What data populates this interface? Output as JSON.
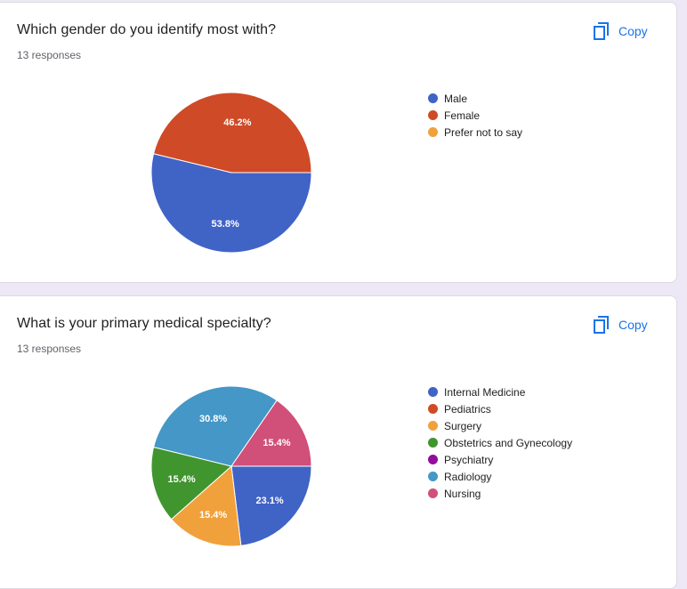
{
  "questions": [
    {
      "title": "Which gender do you identify most with?",
      "responses": "13 responses",
      "copy_label": "Copy",
      "copy_icon": "copy-icon",
      "legend": [
        {
          "label": "Male",
          "color": "#4063c6"
        },
        {
          "label": "Female",
          "color": "#cf4a27"
        },
        {
          "label": "Prefer not to say",
          "color": "#f1a13b"
        }
      ]
    },
    {
      "title": "What is your primary medical specialty?",
      "responses": "13 responses",
      "copy_label": "Copy",
      "copy_icon": "copy-icon",
      "legend": [
        {
          "label": "Internal Medicine",
          "color": "#4063c6"
        },
        {
          "label": "Pediatrics",
          "color": "#cf4a27"
        },
        {
          "label": "Surgery",
          "color": "#f1a13b"
        },
        {
          "label": "Obstetrics and Gynecology",
          "color": "#41952e"
        },
        {
          "label": "Psychiatry",
          "color": "#950c9c"
        },
        {
          "label": "Radiology",
          "color": "#4497c6"
        },
        {
          "label": "Nursing",
          "color": "#d0507a"
        }
      ]
    }
  ],
  "chart_data": [
    {
      "type": "pie",
      "categories": [
        "Male",
        "Female",
        "Prefer not to say"
      ],
      "values": [
        53.8,
        46.2,
        0
      ],
      "labels": [
        "53.8%",
        "46.2%",
        ""
      ],
      "colors": [
        "#4063c6",
        "#cf4a27",
        "#f1a13b"
      ],
      "legend_position": "right"
    },
    {
      "type": "pie",
      "categories": [
        "Internal Medicine",
        "Pediatrics",
        "Surgery",
        "Obstetrics and Gynecology",
        "Psychiatry",
        "Radiology",
        "Nursing"
      ],
      "values": [
        23.1,
        0,
        15.4,
        15.4,
        0,
        30.8,
        15.4
      ],
      "labels": [
        "23.1%",
        "",
        "15.4%",
        "15.4%",
        "",
        "30.8%",
        "15.4%"
      ],
      "colors": [
        "#4063c6",
        "#cf4a27",
        "#f1a13b",
        "#41952e",
        "#950c9c",
        "#4497c6",
        "#d0507a"
      ],
      "legend_position": "right"
    }
  ]
}
